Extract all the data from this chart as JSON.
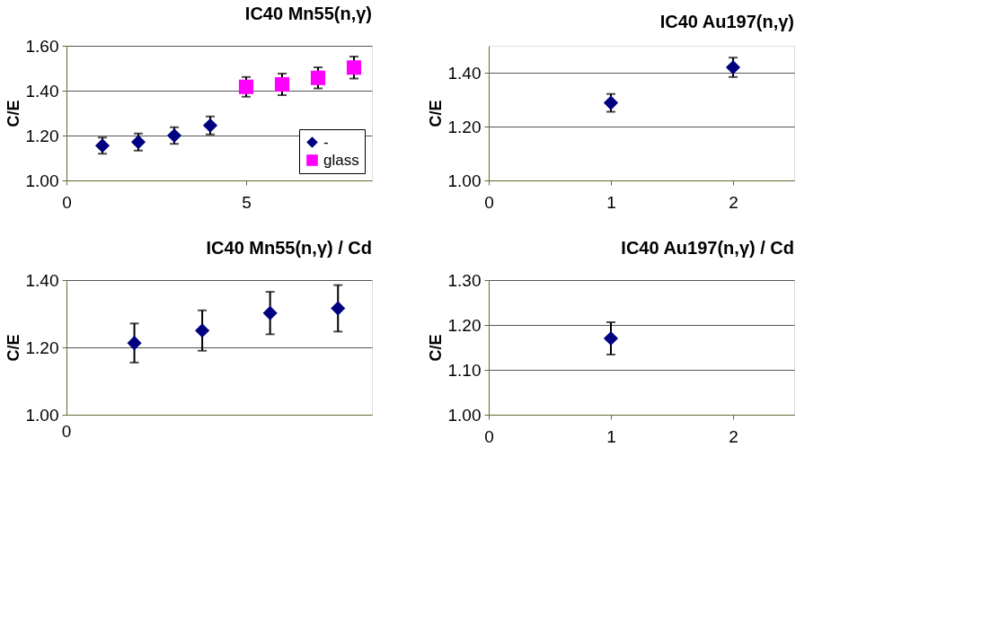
{
  "chart_data": [
    {
      "type": "scatter",
      "title": "IC40  Mn55(n,γ)",
      "ylabel": "C/E",
      "xlim": [
        0,
        8.5
      ],
      "xticks": [
        0,
        5
      ],
      "ylim": [
        1.0,
        1.6
      ],
      "yticks": [
        {
          "value": 1.0,
          "label": "1.00"
        },
        {
          "value": 1.2,
          "label": "1.20"
        },
        {
          "value": 1.4,
          "label": "1.40"
        },
        {
          "value": 1.6,
          "label": "1.60"
        }
      ],
      "grid": "y",
      "legend": "bottom right",
      "series": [
        {
          "name": "-",
          "color": "#000080",
          "marker": "diamond",
          "x": [
            1,
            2,
            3,
            4
          ],
          "values": [
            1.155,
            1.171,
            1.2,
            1.245
          ],
          "errors": [
            0.036,
            0.038,
            0.037,
            0.04
          ]
        },
        {
          "name": "glass",
          "color": "#ff00ff",
          "marker": "square",
          "x": [
            5,
            6,
            7,
            8
          ],
          "values": [
            1.417,
            1.428,
            1.457,
            1.503
          ],
          "errors": [
            0.044,
            0.048,
            0.047,
            0.049
          ]
        }
      ]
    },
    {
      "type": "scatter",
      "title": "IC40  Au197(n,γ)",
      "ylabel": "C/E",
      "xlim": [
        0,
        2.5
      ],
      "xticks": [
        0,
        1,
        2
      ],
      "ylim": [
        1.0,
        1.5
      ],
      "yticks": [
        {
          "value": 1.0,
          "label": "1.00"
        },
        {
          "value": 1.2,
          "label": "1.20"
        },
        {
          "value": 1.4,
          "label": "1.40"
        }
      ],
      "grid": "y",
      "series": [
        {
          "color": "#000080",
          "marker": "diamond",
          "x": [
            1,
            2
          ],
          "values": [
            1.288,
            1.42
          ],
          "errors": [
            0.033,
            0.036
          ]
        }
      ]
    },
    {
      "type": "scatter",
      "title": "IC40  Mn55(n,γ) / Cd",
      "ylabel": "C/E",
      "categories": [
        null,
        null,
        null,
        null
      ],
      "annotations": [
        "0"
      ],
      "ylim": [
        1.0,
        1.4
      ],
      "yticks": [
        {
          "value": 1.0,
          "label": "1.00"
        },
        {
          "value": 1.2,
          "label": "1.20"
        },
        {
          "value": 1.4,
          "label": "1.40"
        }
      ],
      "grid": "y",
      "series": [
        {
          "color": "#000080",
          "marker": "diamond",
          "values": [
            1.213,
            1.25,
            1.302,
            1.316
          ],
          "errors": [
            0.058,
            0.06,
            0.063,
            0.069
          ]
        }
      ]
    },
    {
      "type": "scatter",
      "title": "IC40  Au197(n,γ) / Cd",
      "ylabel": "C/E",
      "xlim": [
        0,
        2.5
      ],
      "xticks": [
        0,
        1,
        2
      ],
      "ylim": [
        1.0,
        1.3
      ],
      "yticks": [
        {
          "value": 1.0,
          "label": "1.00"
        },
        {
          "value": 1.1,
          "label": "1.10"
        },
        {
          "value": 1.2,
          "label": "1.20"
        },
        {
          "value": 1.3,
          "label": "1.30"
        }
      ],
      "grid": "y",
      "series": [
        {
          "color": "#000080",
          "marker": "diamond",
          "x": [
            1
          ],
          "values": [
            1.17
          ],
          "errors": [
            0.036
          ]
        }
      ]
    }
  ]
}
